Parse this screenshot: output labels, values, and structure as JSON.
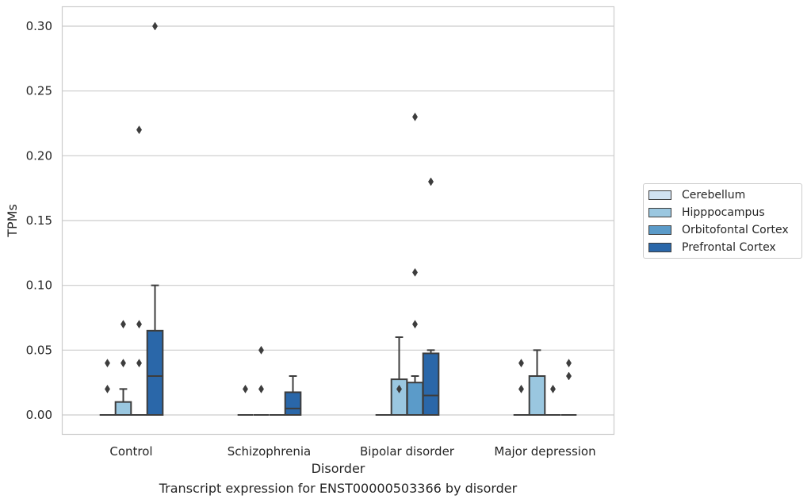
{
  "chart_data": {
    "type": "box",
    "xlabel": "Disorder",
    "ylabel": "TPMs",
    "caption": "Transcript expression for ENST00000503366 by disorder",
    "ylim": [
      -0.015,
      0.315
    ],
    "yticks": [
      0.0,
      0.05,
      0.1,
      0.15,
      0.2,
      0.25,
      0.3
    ],
    "ytick_labels": [
      "0.00",
      "0.05",
      "0.10",
      "0.15",
      "0.20",
      "0.25",
      "0.30"
    ],
    "categories": [
      "Control",
      "Schizophrenia",
      "Bipolar disorder",
      "Major depression"
    ],
    "grid": "horizontal",
    "legend_position": "outside-right",
    "series": [
      {
        "name": "Cerebellum",
        "color": "#d1e2f2",
        "boxes": [
          {
            "whislo": 0.0,
            "q1": 0.0,
            "med": 0.0,
            "q3": 0.0,
            "whishi": 0.0,
            "fliers": [
              0.02,
              0.04
            ]
          },
          {
            "whislo": 0.0,
            "q1": 0.0,
            "med": 0.0,
            "q3": 0.0,
            "whishi": 0.0,
            "fliers": [
              0.02
            ]
          },
          {
            "whislo": 0.0,
            "q1": 0.0,
            "med": 0.0,
            "q3": 0.0,
            "whishi": 0.0,
            "fliers": []
          },
          {
            "whislo": 0.0,
            "q1": 0.0,
            "med": 0.0,
            "q3": 0.0,
            "whishi": 0.0,
            "fliers": [
              0.02,
              0.04
            ]
          }
        ]
      },
      {
        "name": "Hipppocampus",
        "color": "#9ac7e0",
        "boxes": [
          {
            "whislo": 0.0,
            "q1": 0.0,
            "med": 0.0,
            "q3": 0.01,
            "whishi": 0.02,
            "fliers": [
              0.04,
              0.07
            ]
          },
          {
            "whislo": 0.0,
            "q1": 0.0,
            "med": 0.0,
            "q3": 0.0,
            "whishi": 0.0,
            "fliers": [
              0.02,
              0.05
            ]
          },
          {
            "whislo": 0.0,
            "q1": 0.0,
            "med": 0.0,
            "q3": 0.0275,
            "whishi": 0.06,
            "fliers": [
              0.02
            ]
          },
          {
            "whislo": 0.0,
            "q1": 0.0,
            "med": 0.0,
            "q3": 0.03,
            "whishi": 0.05,
            "fliers": []
          }
        ]
      },
      {
        "name": "Orbitofontal Cortex",
        "color": "#5b9bc9",
        "boxes": [
          {
            "whislo": 0.0,
            "q1": 0.0,
            "med": 0.0,
            "q3": 0.0,
            "whishi": 0.0,
            "fliers": [
              0.04,
              0.07,
              0.22
            ]
          },
          {
            "whislo": 0.0,
            "q1": 0.0,
            "med": 0.0,
            "q3": 0.0,
            "whishi": 0.0,
            "fliers": []
          },
          {
            "whislo": 0.0,
            "q1": 0.0,
            "med": 0.0,
            "q3": 0.025,
            "whishi": 0.03,
            "fliers": [
              0.07,
              0.11,
              0.23
            ]
          },
          {
            "whislo": 0.0,
            "q1": 0.0,
            "med": 0.0,
            "q3": 0.0,
            "whishi": 0.0,
            "fliers": [
              0.02
            ]
          }
        ]
      },
      {
        "name": "Prefrontal Cortex",
        "color": "#2a67a9",
        "boxes": [
          {
            "whislo": 0.0,
            "q1": 0.0,
            "med": 0.03,
            "q3": 0.065,
            "whishi": 0.1,
            "fliers": [
              0.3
            ]
          },
          {
            "whislo": 0.0,
            "q1": 0.0,
            "med": 0.005,
            "q3": 0.0175,
            "whishi": 0.03,
            "fliers": []
          },
          {
            "whislo": 0.0,
            "q1": 0.0,
            "med": 0.015,
            "q3": 0.0475,
            "whishi": 0.05,
            "fliers": [
              0.18
            ]
          },
          {
            "whislo": 0.0,
            "q1": 0.0,
            "med": 0.0,
            "q3": 0.0,
            "whishi": 0.0,
            "fliers": [
              0.03,
              0.04
            ]
          }
        ]
      }
    ]
  }
}
